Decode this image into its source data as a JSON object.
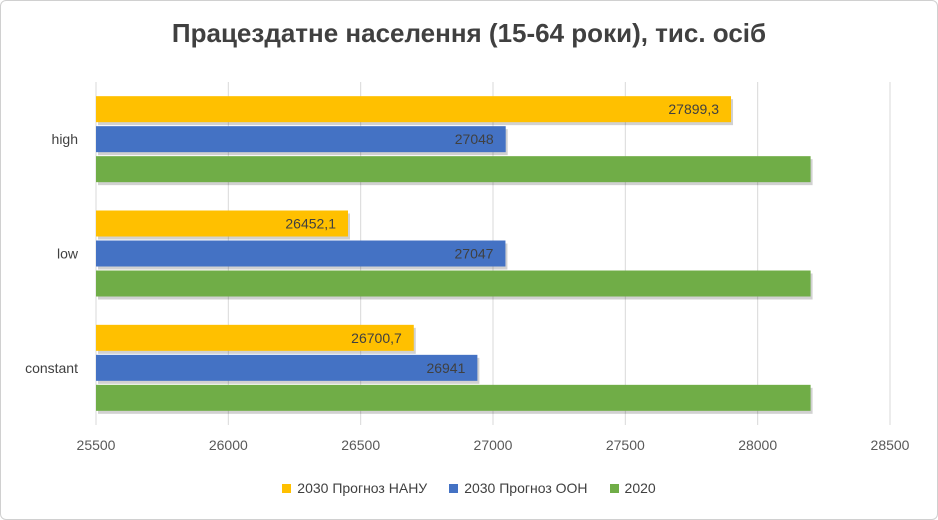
{
  "chart_data": {
    "type": "bar",
    "orientation": "horizontal",
    "title": "Працездатне населення (15-64 роки), тис. осіб",
    "categories": [
      "high",
      "low",
      "constant"
    ],
    "series": [
      {
        "name": "2030 Прогноз НАНУ",
        "color": "#FFC000",
        "values": [
          27899.3,
          26452.1,
          26700.7
        ],
        "labels": [
          "27899,3",
          "26452,1",
          "26700,7"
        ]
      },
      {
        "name": "2030 Прогноз ООН",
        "color": "#4472C4",
        "values": [
          27048,
          27047,
          26941
        ],
        "labels": [
          "27048",
          "27047",
          "26941"
        ]
      },
      {
        "name": "2020",
        "color": "#70AD47",
        "values": [
          28200,
          28200,
          28200
        ],
        "labels": [
          "",
          "",
          ""
        ]
      }
    ],
    "xlim": [
      25500,
      28500
    ],
    "xticks": [
      "25500",
      "26000",
      "26500",
      "27000",
      "27500",
      "28000",
      "28500"
    ],
    "grid": true,
    "legend_position": "bottom"
  }
}
